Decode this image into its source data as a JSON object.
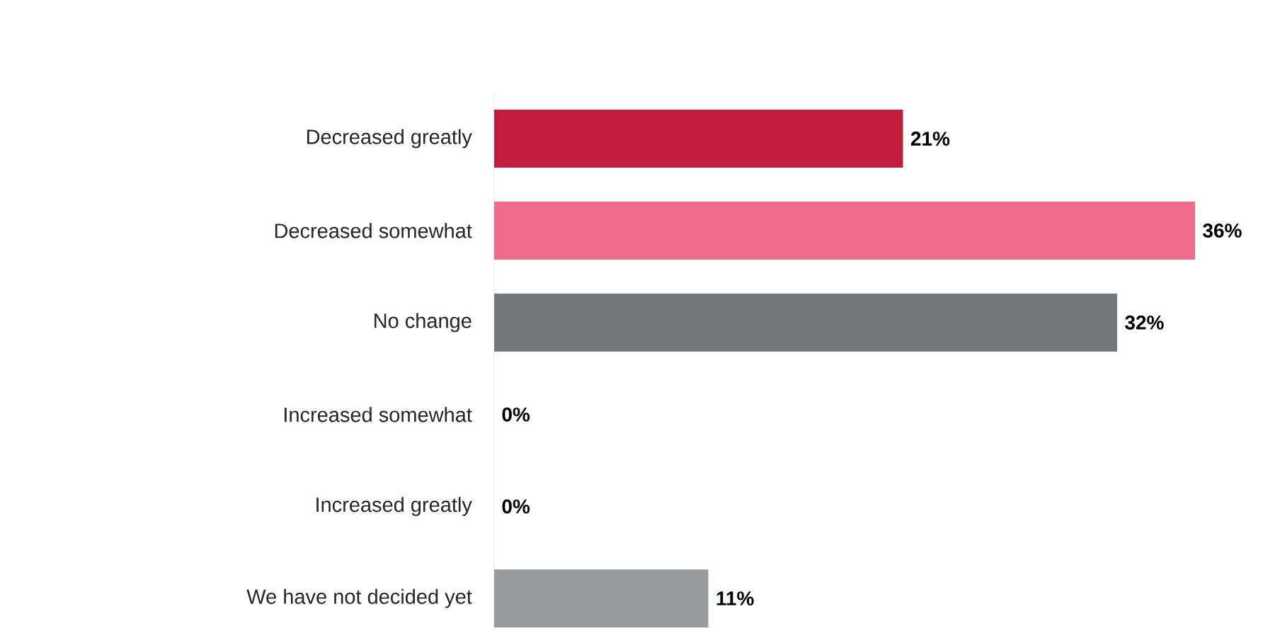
{
  "chart_data": {
    "type": "bar",
    "orientation": "horizontal",
    "categories": [
      "Decreased greatly",
      "Decreased somewhat",
      "No change",
      "Increased somewhat",
      "Increased greatly",
      "We have not decided yet"
    ],
    "values": [
      21,
      36,
      32,
      0,
      0,
      11
    ],
    "colors": [
      "#c21d3d",
      "#f06b8a",
      "#76777b",
      "#76777b",
      "#76777b",
      "#9a9b9f"
    ],
    "value_labels": [
      "21%",
      "36%",
      "32%",
      "0%",
      "0%",
      "11%"
    ],
    "xlim": [
      0,
      36
    ]
  }
}
